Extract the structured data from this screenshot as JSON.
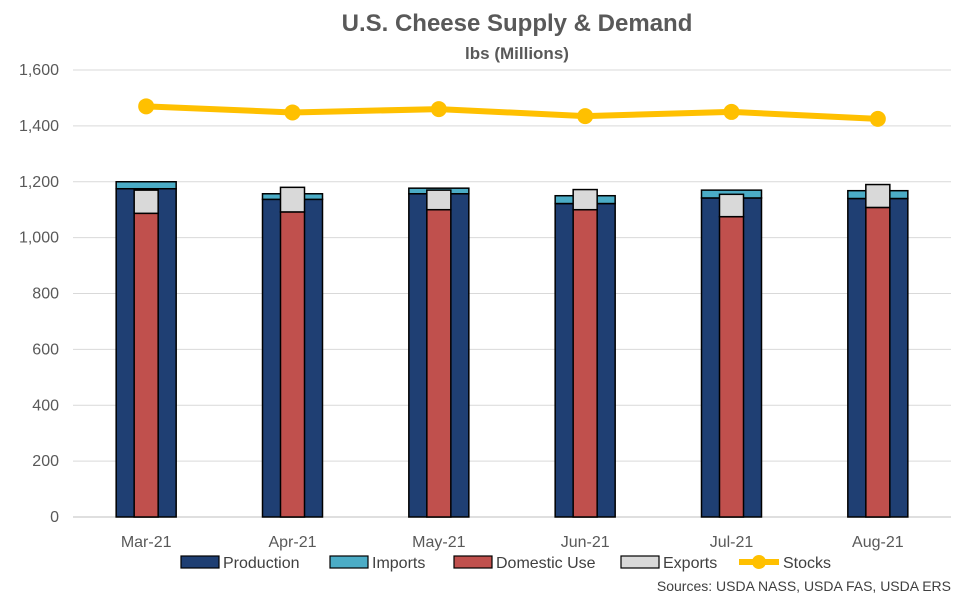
{
  "chart_data": {
    "type": "bar",
    "title": "U.S. Cheese Supply & Demand",
    "subtitle": "lbs (Millions)",
    "categories": [
      "Mar-21",
      "Apr-21",
      "May-21",
      "Jun-21",
      "Jul-21",
      "Aug-21"
    ],
    "ylim": [
      0,
      1600
    ],
    "yticks": [
      "0",
      "200",
      "400",
      "600",
      "800",
      "1,000",
      "1,200",
      "1,400",
      "1,600"
    ],
    "grid": true,
    "legend_position": "bottom",
    "supply_stack": [
      {
        "name": "Production",
        "color": "#1F3F73",
        "values": [
          1175,
          1137,
          1157,
          1122,
          1142,
          1140
        ]
      },
      {
        "name": "Imports",
        "color": "#4BACC6",
        "values": [
          25,
          20,
          20,
          28,
          28,
          28
        ]
      }
    ],
    "demand_stack": [
      {
        "name": "Domestic Use",
        "color": "#C0504D",
        "values": [
          1087,
          1092,
          1100,
          1100,
          1075,
          1108
        ]
      },
      {
        "name": "Exports",
        "color": "#D9D9D9",
        "values": [
          83,
          88,
          70,
          72,
          80,
          82
        ]
      }
    ],
    "line_series": {
      "name": "Stocks",
      "color": "#FFC000",
      "values": [
        1470,
        1448,
        1460,
        1435,
        1450,
        1425
      ]
    },
    "legend": [
      "Production",
      "Imports",
      "Domestic Use",
      "Exports",
      "Stocks"
    ],
    "source_note": "Sources: USDA NASS, USDA FAS, USDA ERS"
  }
}
